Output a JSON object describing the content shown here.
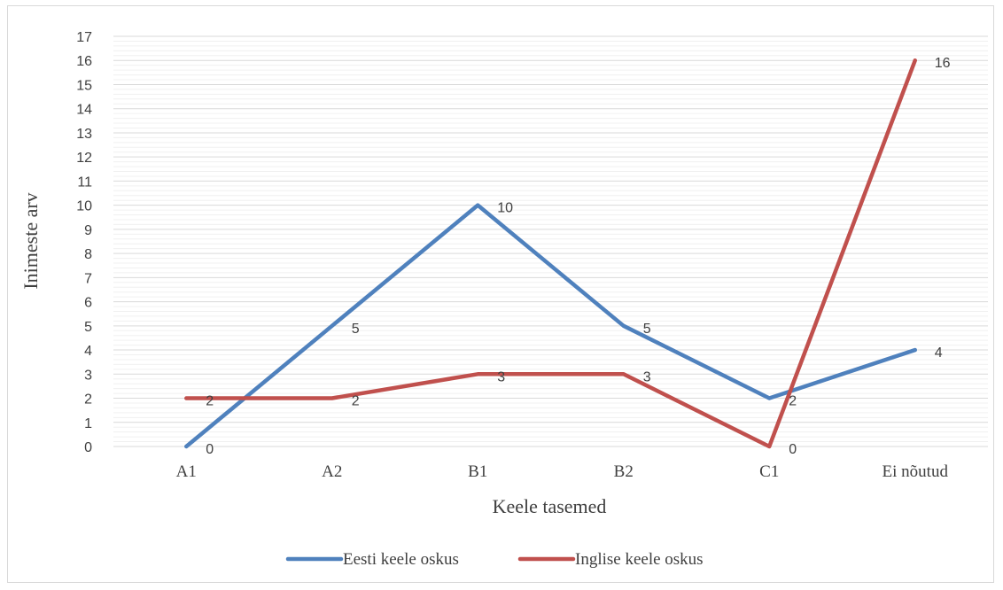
{
  "chart_data": {
    "type": "line",
    "title": "",
    "xlabel": "Keele tasemed",
    "ylabel": "Inimeste arv",
    "categories": [
      "A1",
      "A2",
      "B1",
      "B2",
      "C1",
      "Ei nõutud"
    ],
    "ylim": [
      0,
      17
    ],
    "yticks": [
      0,
      1,
      2,
      3,
      4,
      5,
      6,
      7,
      8,
      9,
      10,
      11,
      12,
      13,
      14,
      15,
      16,
      17
    ],
    "grid": true,
    "legend_position": "bottom",
    "series": [
      {
        "name": "Eesti keele oskus",
        "values": [
          0,
          5,
          10,
          5,
          2,
          4
        ],
        "color": "#4f81bd"
      },
      {
        "name": "Inglise keele oskus",
        "values": [
          2,
          2,
          3,
          3,
          0,
          16
        ],
        "color": "#c0504d"
      }
    ]
  }
}
